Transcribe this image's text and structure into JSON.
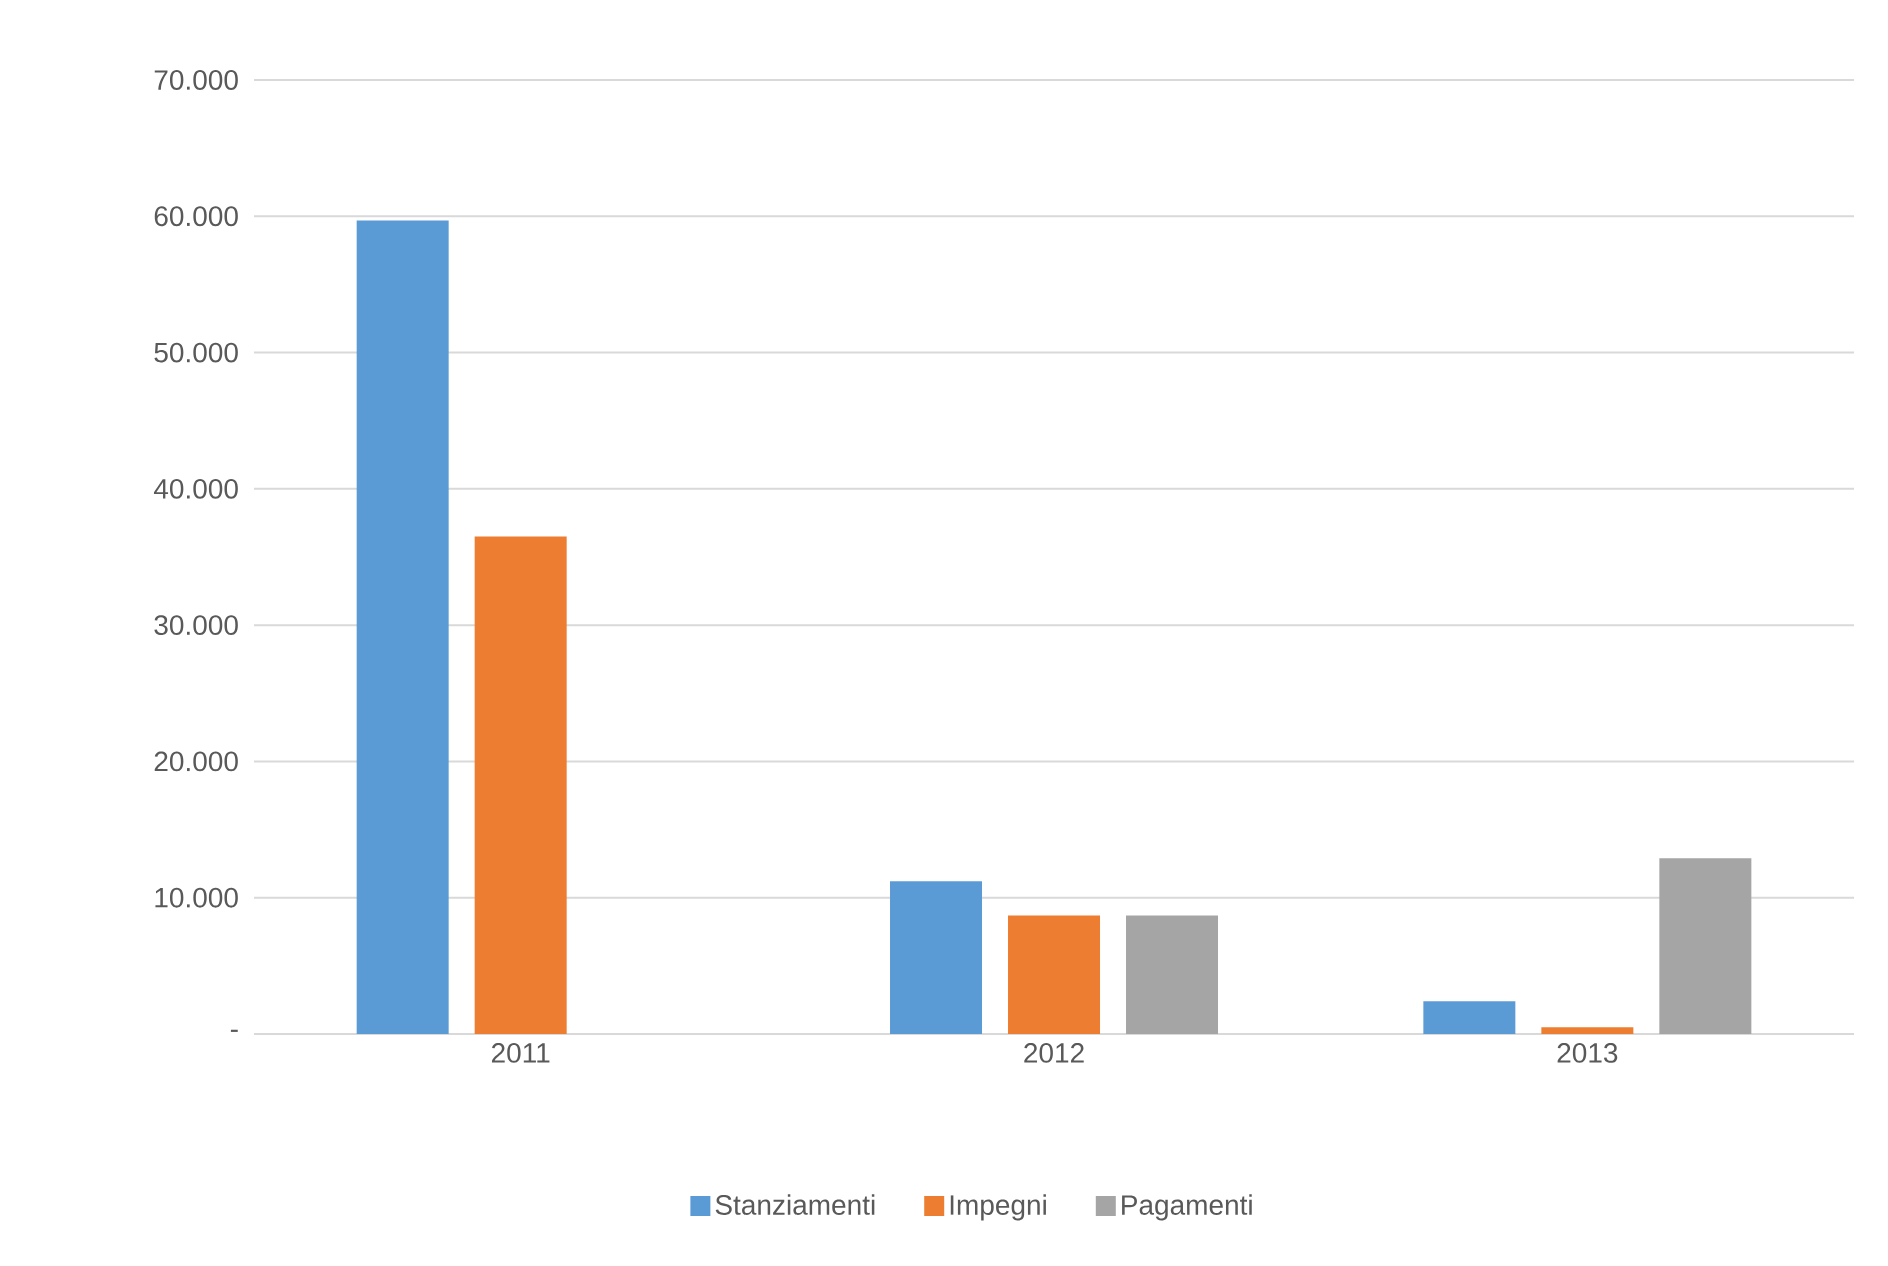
{
  "chart_data": {
    "type": "bar",
    "categories": [
      "2011",
      "2012",
      "2013"
    ],
    "series": [
      {
        "name": "Stanziamenti",
        "color": "#5b9bd5",
        "values": [
          59700,
          11200,
          2400
        ]
      },
      {
        "name": "Impegni",
        "color": "#ed7d31",
        "values": [
          36500,
          8700,
          500
        ]
      },
      {
        "name": "Pagamenti",
        "color": "#a5a5a5",
        "values": [
          null,
          8700,
          12900
        ]
      }
    ],
    "ylim": [
      0,
      70000
    ],
    "yticks": [
      {
        "value": 0,
        "label": "-"
      },
      {
        "value": 10000,
        "label": "10.000"
      },
      {
        "value": 20000,
        "label": "20.000"
      },
      {
        "value": 30000,
        "label": "30.000"
      },
      {
        "value": 40000,
        "label": "40.000"
      },
      {
        "value": 50000,
        "label": "50.000"
      },
      {
        "value": 60000,
        "label": "60.000"
      },
      {
        "value": 70000,
        "label": "70.000"
      }
    ],
    "grid": "y",
    "legend": "bottom"
  }
}
